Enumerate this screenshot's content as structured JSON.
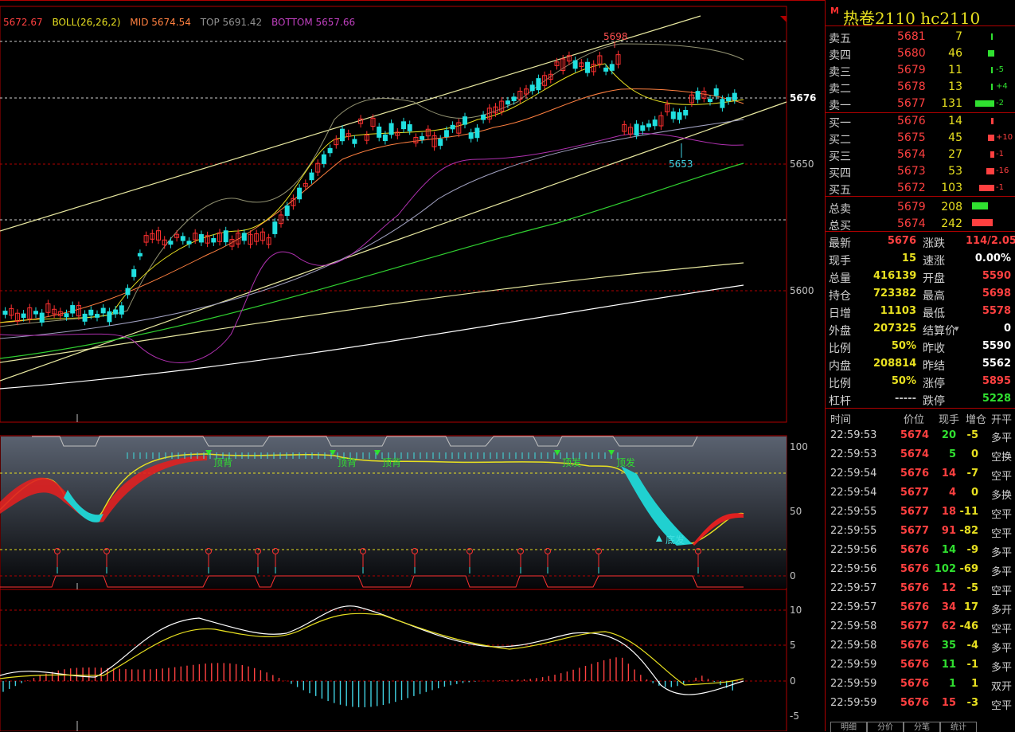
{
  "boll_header": {
    "price": "5672.67",
    "name": "BOLL(26,26,2)",
    "mid": "MID 5674.54",
    "top": "TOP 5691.42",
    "bottom": "BOTTOM 5657.66",
    "colors": {
      "price": "#ff4040",
      "name": "#e8e020",
      "mid": "#ff8040",
      "top": "#808080",
      "bottom": "#c040c0"
    }
  },
  "main_chart": {
    "y_labels": [
      "5676",
      "5650",
      "5600"
    ],
    "annotations": {
      "high": "5698",
      "low": "5653"
    }
  },
  "indicator_chart": {
    "y_labels": [
      "100",
      "50",
      "0"
    ],
    "signals": [
      "顶背",
      "顶背",
      "顶背",
      "顶发",
      "顶发",
      "底发"
    ]
  },
  "macd_chart": {
    "y_labels": [
      "10",
      "5",
      "0",
      "-5"
    ]
  },
  "sidebar": {
    "marker": "M",
    "title": "热卷2110  hc2110",
    "asks": [
      {
        "label": "卖五",
        "price": "5681",
        "vol": "7",
        "change": ""
      },
      {
        "label": "卖四",
        "price": "5680",
        "vol": "46",
        "change": ""
      },
      {
        "label": "卖三",
        "price": "5679",
        "vol": "11",
        "change": "-5"
      },
      {
        "label": "卖二",
        "price": "5678",
        "vol": "13",
        "change": "+4"
      },
      {
        "label": "卖一",
        "price": "5677",
        "vol": "131",
        "change": "-2"
      }
    ],
    "bids": [
      {
        "label": "买一",
        "price": "5676",
        "vol": "14",
        "change": ""
      },
      {
        "label": "买二",
        "price": "5675",
        "vol": "45",
        "change": "+10"
      },
      {
        "label": "买三",
        "price": "5674",
        "vol": "27",
        "change": "-1"
      },
      {
        "label": "买四",
        "price": "5673",
        "vol": "53",
        "change": "-16"
      },
      {
        "label": "买五",
        "price": "5672",
        "vol": "103",
        "change": "-1"
      }
    ],
    "totals": [
      {
        "label": "总卖",
        "price": "5679",
        "vol": "208"
      },
      {
        "label": "总买",
        "price": "5674",
        "vol": "242"
      }
    ],
    "stats": [
      {
        "k1": "最新",
        "v1": "5676",
        "c1": "#ff4040",
        "k2": "涨跌",
        "v2": "114/2.05%",
        "c2": "#ff4040"
      },
      {
        "k1": "现手",
        "v1": "15",
        "c1": "#e8e020",
        "k2": "速涨",
        "v2": "0.00%",
        "c2": "#ffffff"
      },
      {
        "k1": "总量",
        "v1": "416139",
        "c1": "#e8e020",
        "k2": "开盘",
        "v2": "5590",
        "c2": "#ff4040"
      },
      {
        "k1": "持仓",
        "v1": "723382",
        "c1": "#e8e020",
        "k2": "最高",
        "v2": "5698",
        "c2": "#ff4040"
      },
      {
        "k1": "日增",
        "v1": "11103",
        "c1": "#e8e020",
        "k2": "最低",
        "v2": "5578",
        "c2": "#ff4040"
      },
      {
        "k1": "外盘",
        "v1": "207325",
        "c1": "#e8e020",
        "k2": "结算价",
        "v2": "0",
        "c2": "#ffffff"
      },
      {
        "k1": "比例",
        "v1": "50%",
        "c1": "#e8e020",
        "k2": "昨收",
        "v2": "5590",
        "c2": "#ffffff"
      },
      {
        "k1": "内盘",
        "v1": "208814",
        "c1": "#e8e020",
        "k2": "昨结",
        "v2": "5562",
        "c2": "#ffffff"
      },
      {
        "k1": "比例",
        "v1": "50%",
        "c1": "#e8e020",
        "k2": "涨停",
        "v2": "5895",
        "c2": "#ff4040"
      },
      {
        "k1": "杠杆",
        "v1": "-----",
        "c1": "#c0c0c0",
        "k2": "跌停",
        "v2": "5228",
        "c2": "#30e030"
      }
    ],
    "trades_header": {
      "time": "时间",
      "price": "价位",
      "vol": "现手",
      "chg": "增仓",
      "kind": "开平"
    },
    "trades": [
      {
        "time": "22:59:53",
        "price": "5674",
        "vol": "20",
        "chg": "-5",
        "kind": "多平",
        "vc": "#30e030"
      },
      {
        "time": "22:59:53",
        "price": "5674",
        "vol": "5",
        "chg": "0",
        "kind": "空换",
        "vc": "#30e030"
      },
      {
        "time": "22:59:54",
        "price": "5676",
        "vol": "14",
        "chg": "-7",
        "kind": "空平",
        "vc": "#ff4040"
      },
      {
        "time": "22:59:54",
        "price": "5677",
        "vol": "4",
        "chg": "0",
        "kind": "多换",
        "vc": "#ff4040"
      },
      {
        "time": "22:59:55",
        "price": "5677",
        "vol": "18",
        "chg": "-11",
        "kind": "空平",
        "vc": "#ff4040"
      },
      {
        "time": "22:59:55",
        "price": "5677",
        "vol": "91",
        "chg": "-82",
        "kind": "空平",
        "vc": "#ff4040"
      },
      {
        "time": "22:59:56",
        "price": "5676",
        "vol": "14",
        "chg": "-9",
        "kind": "多平",
        "vc": "#30e030"
      },
      {
        "time": "22:59:56",
        "price": "5676",
        "vol": "102",
        "chg": "-69",
        "kind": "多平",
        "vc": "#30e030"
      },
      {
        "time": "22:59:57",
        "price": "5676",
        "vol": "12",
        "chg": "-5",
        "kind": "空平",
        "vc": "#ff4040"
      },
      {
        "time": "22:59:57",
        "price": "5676",
        "vol": "34",
        "chg": "17",
        "kind": "多开",
        "vc": "#ff4040"
      },
      {
        "time": "22:59:58",
        "price": "5677",
        "vol": "62",
        "chg": "-46",
        "kind": "空平",
        "vc": "#ff4040"
      },
      {
        "time": "22:59:58",
        "price": "5676",
        "vol": "35",
        "chg": "-4",
        "kind": "多平",
        "vc": "#30e030"
      },
      {
        "time": "22:59:59",
        "price": "5676",
        "vol": "11",
        "chg": "-1",
        "kind": "多平",
        "vc": "#30e030"
      },
      {
        "time": "22:59:59",
        "price": "5676",
        "vol": "1",
        "chg": "1",
        "kind": "双开",
        "vc": "#30e030"
      },
      {
        "time": "22:59:59",
        "price": "5676",
        "vol": "15",
        "chg": "-3",
        "kind": "空平",
        "vc": "#ff4040"
      }
    ],
    "bottom_tabs": [
      "明细",
      "分价",
      "分笔",
      "统计"
    ]
  }
}
